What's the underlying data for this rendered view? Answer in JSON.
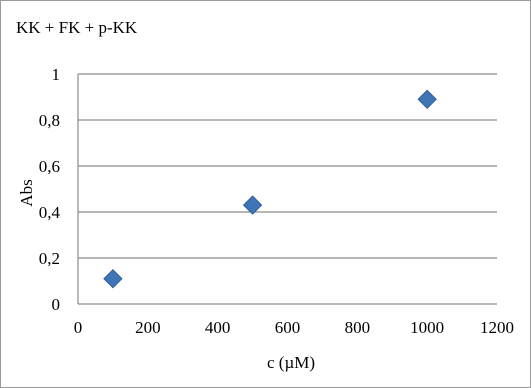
{
  "chart_data": {
    "type": "scatter",
    "title": "KK + FK + p-KK",
    "xlabel": "c (µM)",
    "ylabel": "Abs",
    "xlim": [
      0,
      1200
    ],
    "ylim": [
      0,
      1
    ],
    "xticks": [
      0,
      200,
      400,
      600,
      800,
      1000,
      1200
    ],
    "yticks": [
      0,
      0.2,
      0.4,
      0.6,
      0.8,
      1
    ],
    "x_tick_labels": [
      "0",
      "200",
      "400",
      "600",
      "800",
      "1000",
      "1200"
    ],
    "y_tick_labels": [
      "0",
      "0,2",
      "0,4",
      "0,6",
      "0,8",
      "1"
    ],
    "grid": "horizontal",
    "series": [
      {
        "x": [
          100,
          500,
          1000
        ],
        "y": [
          0.11,
          0.43,
          0.89
        ],
        "marker": "diamond",
        "color": "#3f74b7"
      }
    ]
  }
}
